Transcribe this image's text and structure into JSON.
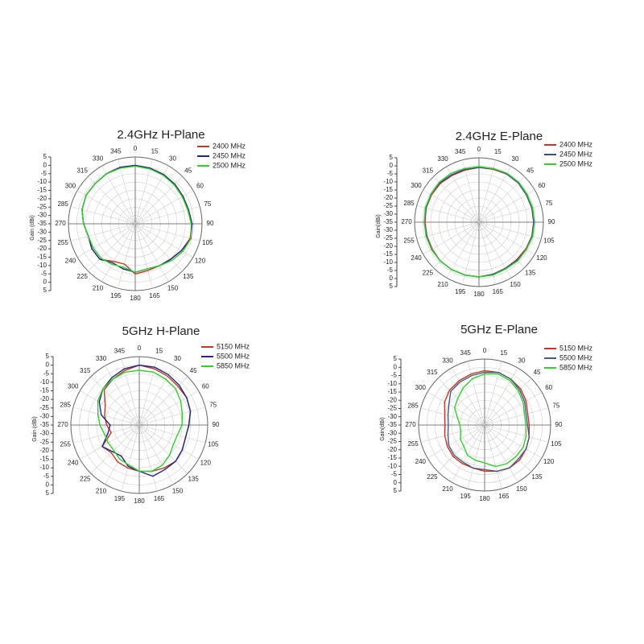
{
  "chart_data": [
    {
      "type": "polar",
      "title": "2.4GHz H-Plane",
      "y_label": "Gain (dBi)",
      "x": [
        0,
        15,
        30,
        45,
        60,
        75,
        90,
        105,
        120,
        135,
        150,
        165,
        180,
        195,
        210,
        225,
        240,
        255,
        270,
        285,
        300,
        315,
        330,
        345
      ],
      "rlim": [
        -35,
        5
      ],
      "rticks": [
        5,
        0,
        -5,
        -10,
        -15,
        -20,
        -25,
        -30,
        -35
      ],
      "grid": true,
      "series": [
        {
          "name": "2400 MHz",
          "color": "#c0392b",
          "values": [
            0,
            -0.5,
            -1,
            -1.5,
            -2,
            -2,
            -1,
            -1,
            -3,
            -5,
            -6,
            -6,
            -5,
            -10,
            -9,
            -5,
            -5,
            -6,
            -4,
            -2,
            -1,
            -1,
            -0.5,
            0
          ]
        },
        {
          "name": "2450 MHz",
          "color": "#1f2a7a",
          "values": [
            0,
            -0.5,
            -1,
            -1.5,
            -2,
            -2,
            -1,
            -0.5,
            -3,
            -5,
            -6,
            -7,
            -6,
            -7,
            -8,
            -5,
            -5,
            -6,
            -4,
            -2,
            -1,
            -1,
            -0.5,
            0
          ]
        },
        {
          "name": "2500 MHz",
          "color": "#33cc33",
          "values": [
            -0.5,
            -1,
            -1.5,
            -2,
            -2.5,
            -2.5,
            -1.5,
            -0.5,
            -2,
            -4,
            -6,
            -7,
            -6,
            -8,
            -7,
            -6,
            -6,
            -6,
            -4,
            -2,
            -1,
            -1,
            -0.5,
            -0.5
          ]
        }
      ]
    },
    {
      "type": "polar",
      "title": "2.4GHz E-Plane",
      "y_label": "Gain(dBi)",
      "x": [
        0,
        15,
        30,
        45,
        60,
        75,
        90,
        105,
        120,
        135,
        150,
        165,
        180,
        195,
        210,
        225,
        240,
        255,
        270,
        285,
        300,
        315,
        330,
        345
      ],
      "rlim": [
        -35,
        5
      ],
      "rticks": [
        5,
        0,
        -5,
        -10,
        -15,
        -20,
        -25,
        -30,
        -35
      ],
      "grid": true,
      "series": [
        {
          "name": "2400 MHz",
          "color": "#c0392b",
          "values": [
            -1,
            -1,
            -0.5,
            -0.5,
            -1,
            -1,
            -1,
            -1,
            -1.5,
            -2,
            -2,
            -1.5,
            -1,
            -1,
            -1,
            -1,
            -1.5,
            -1.5,
            -1.5,
            -1,
            -1,
            -1,
            -1.5,
            -1.5
          ]
        },
        {
          "name": "2450 MHz",
          "color": "#3a4a8a",
          "values": [
            -1,
            -0.5,
            -0.5,
            -0.5,
            -1,
            -1,
            -1,
            -1,
            -1,
            -1.5,
            -2,
            -1.5,
            -1,
            -1,
            -1,
            -1,
            -1,
            -1.5,
            -1,
            -1,
            -0.5,
            -0.5,
            -1,
            -1
          ]
        },
        {
          "name": "2500 MHz",
          "color": "#33cc33",
          "values": [
            -0.5,
            -0.5,
            0,
            0,
            -0.5,
            -0.5,
            -0.5,
            -0.5,
            -1,
            -1,
            -1.5,
            -1,
            -1,
            -1,
            -1,
            -1,
            -1,
            -1,
            -1,
            -0.5,
            -0.5,
            0,
            0,
            -0.5
          ]
        }
      ]
    },
    {
      "type": "polar",
      "title": "5GHz H-Plane",
      "y_label": "Gain (dBi)",
      "x": [
        0,
        15,
        30,
        45,
        60,
        75,
        90,
        105,
        120,
        135,
        150,
        165,
        180,
        195,
        210,
        225,
        240,
        255,
        270,
        285,
        300,
        315,
        330,
        345
      ],
      "rlim": [
        -35,
        5
      ],
      "rticks": [
        5,
        0,
        -5,
        -10,
        -15,
        -20,
        -25,
        -30,
        -35
      ],
      "grid": true,
      "series": [
        {
          "name": "5150 MHz",
          "color": "#c0392b",
          "values": [
            0,
            -1,
            -2,
            -3,
            -3,
            -4,
            -6,
            -7,
            -6,
            -5,
            -6,
            -7,
            -8,
            -9,
            -10,
            -12,
            -10,
            -18,
            -16,
            -14,
            -12,
            -6,
            -4,
            -2
          ]
        },
        {
          "name": "5500 MHz",
          "color": "#1f2a7a",
          "values": [
            0,
            0,
            -1,
            -2,
            -3,
            -4,
            -6,
            -7,
            -6,
            -5,
            -5,
            -4,
            -8,
            -10,
            -14,
            -13,
            -10,
            -16,
            -18,
            -12,
            -8,
            -5,
            -3,
            -1
          ]
        },
        {
          "name": "5850 MHz",
          "color": "#33cc33",
          "values": [
            -3,
            -3,
            -4,
            -5,
            -7,
            -9,
            -10,
            -12,
            -12,
            -10,
            -8,
            -7,
            -8,
            -11,
            -12,
            -14,
            -14,
            -14,
            -12,
            -10,
            -7,
            -5,
            -4,
            -3
          ]
        }
      ]
    },
    {
      "type": "polar",
      "title": "5GHz E-Plane",
      "y_label": "Gain(dBi)",
      "x": [
        0,
        15,
        30,
        45,
        60,
        75,
        90,
        105,
        120,
        135,
        150,
        165,
        180,
        195,
        210,
        225,
        240,
        255,
        270,
        285,
        300,
        315,
        330,
        345
      ],
      "rlim": [
        -35,
        5
      ],
      "rticks": [
        5,
        0,
        -5,
        -10,
        -15,
        -20,
        -25,
        -30,
        -35
      ],
      "grid": true,
      "series": [
        {
          "name": "5150 MHz",
          "color": "#c0392b",
          "values": [
            -2,
            -2,
            -3,
            -4,
            -6,
            -8,
            -8,
            -7,
            -6,
            -5,
            -5,
            -6,
            -7,
            -8,
            -8,
            -8,
            -9,
            -10,
            -11,
            -10,
            -7,
            -5,
            -4,
            -3
          ]
        },
        {
          "name": "5500 MHz",
          "color": "#4a5a7a",
          "values": [
            -3,
            -2,
            -3,
            -5,
            -7,
            -9,
            -9,
            -7,
            -6,
            -6,
            -5,
            -6,
            -8,
            -8,
            -9,
            -9,
            -10,
            -12,
            -13,
            -12,
            -10,
            -6,
            -5,
            -4
          ]
        },
        {
          "name": "5850 MHz",
          "color": "#33cc33",
          "values": [
            -4,
            -3,
            -4,
            -6,
            -8,
            -10,
            -10,
            -9,
            -8,
            -8,
            -8,
            -9,
            -12,
            -13,
            -14,
            -17,
            -18,
            -20,
            -20,
            -18,
            -14,
            -12,
            -9,
            -6
          ]
        }
      ]
    }
  ]
}
